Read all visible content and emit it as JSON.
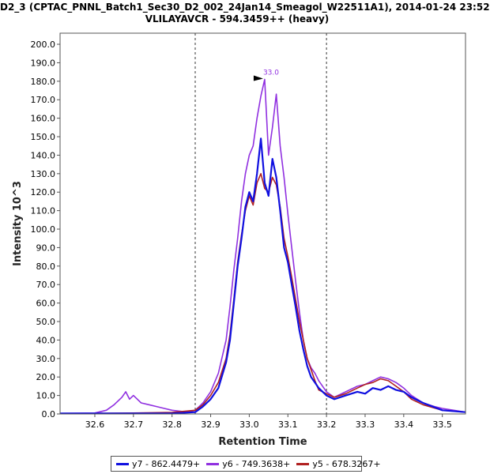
{
  "title_line1": "D2_3 (CPTAC_PNNL_Batch1_Sec30_D2_002_24Jan14_Smeagol_W22511A1), 2014-01-24 23:52",
  "title_line2": "VLILAYAVCR - 594.3459++ (heavy)",
  "chart_data": {
    "type": "line",
    "xlabel": "Retention Time",
    "ylabel": "Intensity 10^3",
    "xlim": [
      32.51,
      33.56
    ],
    "ylim": [
      0,
      206
    ],
    "xticks": [
      "32.6",
      "32.7",
      "32.8",
      "32.9",
      "33.0",
      "33.1",
      "33.2",
      "33.3",
      "33.4",
      "33.5"
    ],
    "yticks": [
      "0.0",
      "10.0",
      "20.0",
      "30.0",
      "40.0",
      "50.0",
      "60.0",
      "70.0",
      "80.0",
      "90.0",
      "100.0",
      "110.0",
      "120.0",
      "130.0",
      "140.0",
      "150.0",
      "160.0",
      "170.0",
      "180.0",
      "190.0",
      "200.0"
    ],
    "boundaries": [
      32.86,
      33.2
    ],
    "peak_label": "33.0",
    "peak_x": 33.04,
    "peak_y": 181,
    "series": [
      {
        "name": "y7 - 862.4479+",
        "color": "#1010e0",
        "x": [
          32.51,
          32.6,
          32.7,
          32.8,
          32.86,
          32.88,
          32.9,
          32.92,
          32.94,
          32.95,
          32.96,
          32.97,
          32.98,
          32.99,
          33.0,
          33.01,
          33.02,
          33.03,
          33.04,
          33.05,
          33.06,
          33.07,
          33.08,
          33.09,
          33.1,
          33.11,
          33.12,
          33.13,
          33.14,
          33.15,
          33.16,
          33.17,
          33.18,
          33.2,
          33.22,
          33.25,
          33.28,
          33.3,
          33.32,
          33.34,
          33.36,
          33.38,
          33.4,
          33.42,
          33.45,
          33.5,
          33.56
        ],
        "y": [
          0.3,
          0.3,
          0.3,
          0.3,
          1,
          4,
          8,
          14,
          28,
          40,
          60,
          80,
          95,
          112,
          120,
          115,
          130,
          149,
          125,
          118,
          138,
          128,
          110,
          90,
          82,
          70,
          58,
          45,
          35,
          26,
          20,
          17,
          14,
          10,
          8,
          10,
          12,
          11,
          14,
          13,
          15,
          13,
          12,
          9,
          6,
          2,
          1
        ]
      },
      {
        "name": "y6 - 749.3638+",
        "color": "#9030e0",
        "x": [
          32.51,
          32.6,
          32.63,
          32.65,
          32.67,
          32.68,
          32.69,
          32.7,
          32.72,
          32.74,
          32.76,
          32.78,
          32.8,
          32.84,
          32.86,
          32.88,
          32.9,
          32.92,
          32.94,
          32.95,
          32.96,
          32.97,
          32.98,
          32.99,
          33.0,
          33.01,
          33.02,
          33.03,
          33.04,
          33.05,
          33.06,
          33.07,
          33.08,
          33.09,
          33.1,
          33.11,
          33.12,
          33.13,
          33.14,
          33.15,
          33.16,
          33.17,
          33.18,
          33.2,
          33.22,
          33.25,
          33.28,
          33.3,
          33.32,
          33.34,
          33.36,
          33.38,
          33.4,
          33.42,
          33.45,
          33.48,
          33.5,
          33.56
        ],
        "y": [
          0.3,
          0.5,
          2,
          5,
          9,
          12,
          8,
          10,
          6,
          5,
          4,
          3,
          2,
          1,
          2,
          6,
          12,
          22,
          40,
          58,
          78,
          95,
          115,
          130,
          140,
          145,
          160,
          172,
          181,
          140,
          155,
          173,
          145,
          128,
          108,
          90,
          72,
          55,
          40,
          30,
          25,
          22,
          18,
          12,
          9,
          12,
          15,
          16,
          18,
          20,
          19,
          17,
          14,
          10,
          6,
          4,
          3,
          1
        ]
      },
      {
        "name": "y5 - 678.3267+",
        "color": "#b02020",
        "x": [
          32.51,
          32.6,
          32.7,
          32.8,
          32.86,
          32.88,
          32.9,
          32.92,
          32.94,
          32.95,
          32.96,
          32.97,
          32.98,
          32.99,
          33.0,
          33.01,
          33.02,
          33.03,
          33.04,
          33.05,
          33.06,
          33.07,
          33.08,
          33.09,
          33.1,
          33.11,
          33.12,
          33.13,
          33.14,
          33.15,
          33.16,
          33.17,
          33.18,
          33.2,
          33.22,
          33.25,
          33.28,
          33.3,
          33.32,
          33.34,
          33.36,
          33.38,
          33.4,
          33.42,
          33.45,
          33.5,
          33.56
        ],
        "y": [
          0.3,
          0.3,
          0.5,
          0.8,
          2,
          5,
          10,
          17,
          30,
          43,
          62,
          82,
          97,
          110,
          118,
          113,
          125,
          130,
          122,
          120,
          128,
          124,
          112,
          95,
          85,
          74,
          62,
          50,
          40,
          30,
          24,
          18,
          13,
          11,
          9,
          11,
          14,
          16,
          17,
          19,
          18,
          15,
          12,
          8,
          5,
          2,
          1
        ]
      }
    ]
  }
}
